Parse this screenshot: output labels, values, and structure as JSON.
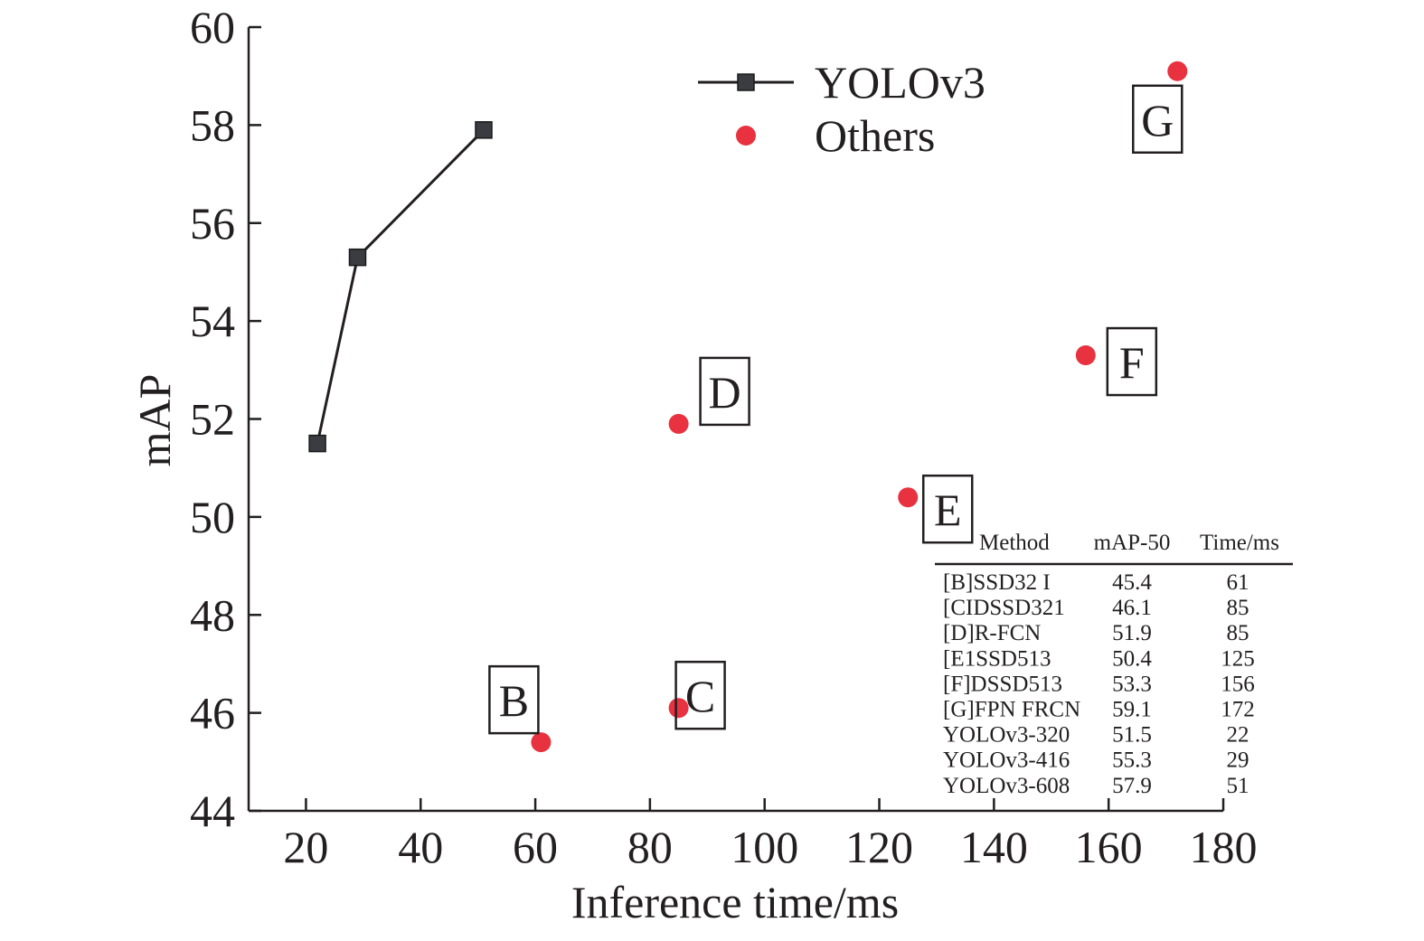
{
  "chart_data": {
    "type": "scatter",
    "xlabel": "Inference time/ms",
    "ylabel": "mAP",
    "xlim": [
      10,
      180
    ],
    "ylim": [
      44,
      60
    ],
    "x_ticks": [
      20,
      40,
      60,
      80,
      100,
      120,
      140,
      160,
      180
    ],
    "y_ticks": [
      44,
      46,
      48,
      50,
      52,
      54,
      56,
      58,
      60
    ],
    "legend_position": "top-center",
    "grid": false,
    "series": [
      {
        "name": "YOLOv3",
        "style": "line-square",
        "color": "#3a3c41",
        "points": [
          {
            "x": 22,
            "y": 51.5
          },
          {
            "x": 29,
            "y": 55.3
          },
          {
            "x": 51,
            "y": 57.9
          }
        ]
      },
      {
        "name": "Others",
        "style": "dot",
        "color": "#e8323f",
        "points": [
          {
            "x": 61,
            "y": 45.4,
            "label": "B"
          },
          {
            "x": 85,
            "y": 46.1,
            "label": "C"
          },
          {
            "x": 85,
            "y": 51.9,
            "label": "D"
          },
          {
            "x": 125,
            "y": 50.4,
            "label": "E"
          },
          {
            "x": 156,
            "y": 53.3,
            "label": "F"
          },
          {
            "x": 172,
            "y": 59.1,
            "label": "G"
          }
        ]
      }
    ],
    "table": {
      "headers": [
        "Method",
        "mAP-50",
        "Time/ms"
      ],
      "rows": [
        [
          "[B]SSD32 I",
          "45.4",
          "61"
        ],
        [
          "[CIDSSD321",
          "46.1",
          "85"
        ],
        [
          "[D]R-FCN",
          "51.9",
          "85"
        ],
        [
          "[E1SSD513",
          "50.4",
          "125"
        ],
        [
          "[F]DSSD513",
          "53.3",
          "156"
        ],
        [
          "[G]FPN FRCN",
          "59.1",
          "172"
        ],
        [
          "YOLOv3-320",
          "51.5",
          "22"
        ],
        [
          "YOLOv3-416",
          "55.3",
          "29"
        ],
        [
          "YOLOv3-608",
          "57.9",
          "51"
        ]
      ]
    }
  }
}
